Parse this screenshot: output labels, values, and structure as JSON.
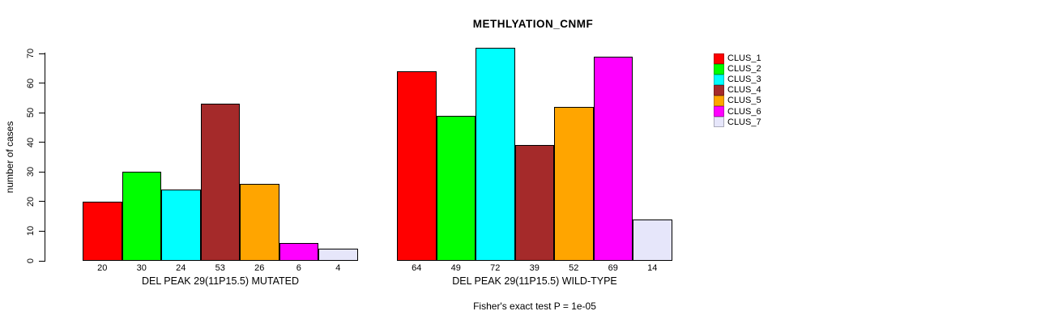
{
  "chart_data": {
    "type": "bar",
    "title": "METHLYATION_CNMF",
    "ylabel": "number of cases",
    "ylim": [
      0,
      70
    ],
    "yticks": [
      0,
      10,
      20,
      30,
      40,
      50,
      60,
      70
    ],
    "grid": false,
    "legend_position": "right",
    "categories": [
      "CLUS_1",
      "CLUS_2",
      "CLUS_3",
      "CLUS_4",
      "CLUS_5",
      "CLUS_6",
      "CLUS_7"
    ],
    "colors": [
      "#FF0000",
      "#00FF00",
      "#00FFFF",
      "#A52A2A",
      "#FFA500",
      "#FF00FF",
      "#E6E6FA"
    ],
    "bar_border_color": "#000000",
    "groups": [
      {
        "label": "DEL PEAK 29(11P15.5) MUTATED",
        "values": [
          20,
          30,
          24,
          53,
          26,
          6,
          4
        ]
      },
      {
        "label": "DEL PEAK 29(11P15.5) WILD-TYPE",
        "values": [
          64,
          49,
          72,
          39,
          52,
          69,
          14
        ]
      }
    ],
    "legend_entries": [
      "CLUS_1",
      "CLUS_2",
      "CLUS_3",
      "CLUS_4",
      "CLUS_5",
      "CLUS_6",
      "CLUS_7"
    ],
    "footer": "Fisher's exact test P = 1e-05"
  }
}
